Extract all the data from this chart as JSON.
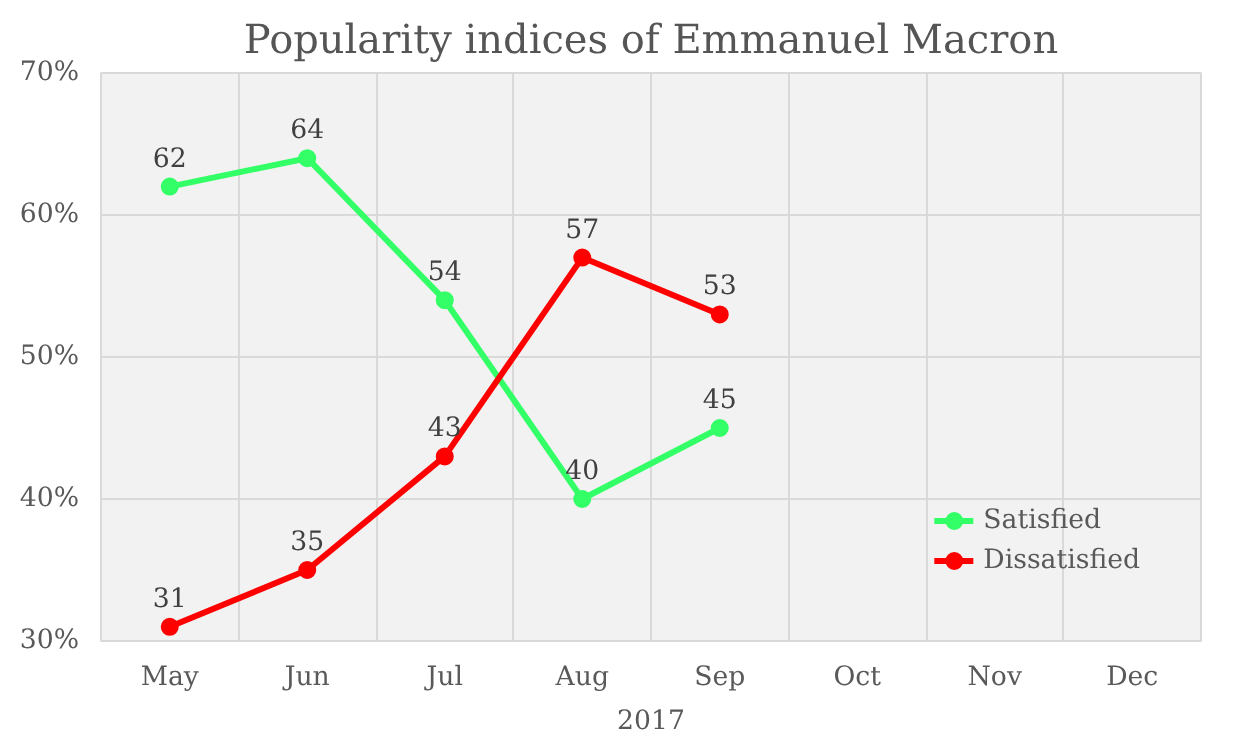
{
  "chart_data": {
    "type": "line",
    "title": "Popularity indices of Emmanuel Macron",
    "xlabel": "2017",
    "categories": [
      "May",
      "Jun",
      "Jul",
      "Aug",
      "Sep",
      "Oct",
      "Nov",
      "Dec"
    ],
    "series": [
      {
        "name": "Satisfied",
        "color": "#33ff66",
        "values": [
          62,
          64,
          54,
          40,
          45,
          null,
          null,
          null
        ]
      },
      {
        "name": "Dissatisfied",
        "color": "#ff0000",
        "values": [
          31,
          35,
          43,
          57,
          53,
          null,
          null,
          null
        ]
      }
    ],
    "ylim": [
      30,
      70
    ],
    "yticks": [
      {
        "value": 30,
        "label": "30%"
      },
      {
        "value": 40,
        "label": "40%"
      },
      {
        "value": 50,
        "label": "50%"
      },
      {
        "value": 60,
        "label": "60%"
      },
      {
        "value": 70,
        "label": "70%"
      }
    ],
    "grid": true,
    "legend": "bottom right",
    "marker": "circle",
    "line_style": "solid",
    "data_labels": true
  }
}
